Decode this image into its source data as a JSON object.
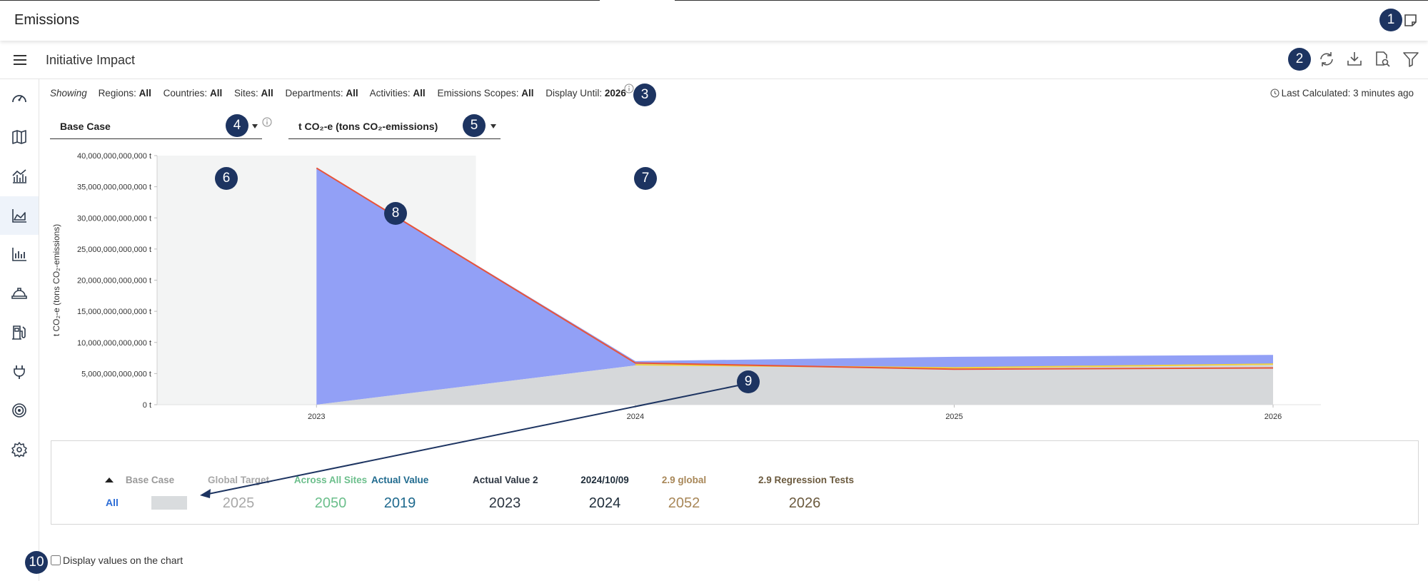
{
  "app": {
    "title": "Emissions"
  },
  "page": {
    "title": "Initiative Impact"
  },
  "icons": {
    "notes": "sticky-note-icon",
    "menu": "hamburger-menu-icon",
    "toolbar": [
      "refresh-icon",
      "download-icon",
      "preview-icon",
      "filter-icon"
    ],
    "sidebar": [
      "dashboard-gauge-icon",
      "map-icon",
      "combo-chart-icon",
      "area-chart-icon",
      "bar-chart-icon",
      "hard-hat-icon",
      "fuel-pump-icon",
      "plug-icon",
      "target-icon",
      "gear-icon"
    ]
  },
  "filters": {
    "showing": "Showing",
    "items": [
      {
        "label": "Regions:",
        "value": "All"
      },
      {
        "label": "Countries:",
        "value": "All"
      },
      {
        "label": "Sites:",
        "value": "All"
      },
      {
        "label": "Departments:",
        "value": "All"
      },
      {
        "label": "Activities:",
        "value": "All"
      },
      {
        "label": "Emissions Scopes:",
        "value": "All"
      },
      {
        "label": "Display Until:",
        "value": "2026"
      }
    ],
    "last_calculated": "Last Calculated: 3 minutes ago"
  },
  "selects": {
    "scenario": "Base Case",
    "unit": "t CO₂-e (tons CO₂-emissions)"
  },
  "badges": [
    "1",
    "2",
    "3",
    "4",
    "5",
    "6",
    "7",
    "8",
    "9",
    "10"
  ],
  "colors": {
    "navy_badge": "#1d3461",
    "base_case_area": "#d4d6d8",
    "initiative_area": "#8c9bf5",
    "red_line": "#e8543a",
    "yellow_line": "#f2d23c",
    "historic_band": "#f3f4f4",
    "link_blue": "#2b6cd6"
  },
  "chart_data": {
    "type": "area",
    "ylabel": "t CO₂-e (tons CO₂-emissions)",
    "y_ticks": [
      "40,000,000,000,000 t",
      "35,000,000,000,000 t",
      "30,000,000,000,000 t",
      "25,000,000,000,000 t",
      "20,000,000,000,000 t",
      "15,000,000,000,000 t",
      "10,000,000,000,000 t",
      "5,000,000,000,000 t",
      "0 t"
    ],
    "ylim": [
      0,
      40000000000000
    ],
    "x_ticks": [
      "2023",
      "2024",
      "2025",
      "2026"
    ],
    "xlim": [
      2022.5,
      2026.15
    ],
    "historic_until": 2023.5,
    "x": [
      2023,
      2024,
      2025,
      2026
    ],
    "series": [
      {
        "key": "base",
        "values": [
          0,
          6300000000000,
          5800000000000,
          6400000000000
        ]
      },
      {
        "key": "total",
        "values": [
          38000000000000,
          7000000000000,
          7700000000000,
          8000000000000
        ]
      }
    ],
    "top_line": [
      38000000000000,
      6700000000000,
      5700000000000,
      5900000000000
    ]
  },
  "legend": {
    "all_label": "All",
    "columns": [
      {
        "header": "Base Case",
        "year": "",
        "color": "#9a9a9a"
      },
      {
        "header": "Global Target",
        "year": "2025",
        "color": "#a8a8a8"
      },
      {
        "header": "Across All Sites",
        "year": "2050",
        "color": "#6cbf8c"
      },
      {
        "header": "Actual Value",
        "year": "2019",
        "color": "#1f6a8e"
      },
      {
        "header": "Actual Value 2",
        "year": "2023",
        "color": "#2b3440"
      },
      {
        "header": "2024/10/09",
        "year": "2024",
        "color": "#1f2d3a"
      },
      {
        "header": "2.9 global",
        "year": "2052",
        "color": "#a88758"
      },
      {
        "header": "2.9 Regression Tests",
        "year": "2026",
        "color": "#6b5a3e"
      }
    ]
  },
  "options": {
    "display_values": "Display values on the chart"
  }
}
